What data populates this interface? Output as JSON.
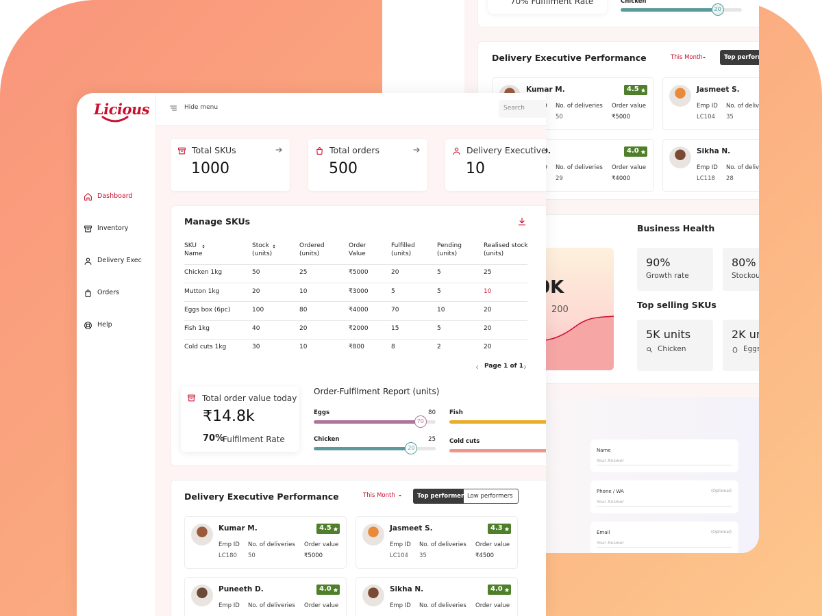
{
  "brand": "Licious",
  "topbar": {
    "hide_menu": "Hide menu",
    "search": "Search"
  },
  "sidebar": {
    "items": [
      "Dashboard",
      "Inventory",
      "Delivery Exec",
      "Orders",
      "Help"
    ],
    "active": 0
  },
  "stats": [
    {
      "label": "Total SKUs",
      "value": "1000"
    },
    {
      "label": "Total orders",
      "value": "500"
    },
    {
      "label": "Delivery Executives",
      "value": "10"
    }
  ],
  "skus": {
    "title": "Manage SKUs",
    "columns": [
      "SKU Name",
      "Stock (units)",
      "Ordered (units)",
      "Order Value",
      "Fulfilled (units)",
      "Pending (units)",
      "Realised stock (units)"
    ],
    "rows": [
      [
        "Chicken 1kg",
        "50",
        "25",
        "₹5000",
        "20",
        "5",
        "25"
      ],
      [
        "Mutton 1kg",
        "20",
        "10",
        "₹3000",
        "5",
        "5",
        "10"
      ],
      [
        "Eggs box (6pc)",
        "100",
        "80",
        "₹4000",
        "70",
        "10",
        "20"
      ],
      [
        "Fish 1kg",
        "40",
        "20",
        "₹2000",
        "15",
        "5",
        "20"
      ],
      [
        "Cold cuts 1kg",
        "30",
        "10",
        "₹800",
        "8",
        "2",
        "20"
      ]
    ],
    "highlight": [
      {
        "row": 1,
        "col": 6
      }
    ],
    "highlight_color": "#d0213b",
    "pagination": "Page 1 of 1"
  },
  "order_value": {
    "label": "Total order value today",
    "value": "₹14.8k",
    "rate": "70%",
    "rate_label": "Fulfilment Rate"
  },
  "fulfilment": {
    "title": "Order-Fulfilment Report (units)",
    "items": [
      {
        "name": "Eggs",
        "fulfilled": 70,
        "total": 80,
        "color": "#b0749c"
      },
      {
        "name": "Chicken",
        "fulfilled": 20,
        "total": 25,
        "color": "#5a9a9c"
      },
      {
        "name": "Fish",
        "color": "#e8ad2a"
      },
      {
        "name": "Cold cuts",
        "color": "#f0958e"
      }
    ]
  },
  "performance": {
    "title": "Delivery Executive Performance",
    "filter": "This Month",
    "tabs": [
      "Top performers",
      "Low performers"
    ],
    "labels": {
      "emp_id": "Emp ID",
      "deliveries": "No. of deliveries",
      "order_value": "Order value"
    },
    "cards": [
      {
        "name": "Kumar M.",
        "rating": "4.5",
        "emp_id": "LC180",
        "deliveries": "50",
        "order_value": "₹5000"
      },
      {
        "name": "Jasmeet S.",
        "rating": "4.3",
        "emp_id": "LC104",
        "deliveries": "35",
        "order_value": "₹4500"
      },
      {
        "name": "Puneeth D.",
        "rating": "4.0"
      },
      {
        "name": "Sikha N.",
        "rating": "4.0"
      }
    ]
  },
  "back": {
    "fulfilment_rate": "70% Fulfilment Rate",
    "performance": {
      "tab": "Top perform",
      "cards": [
        {
          "name": "Kumar M.",
          "rating": "4.5",
          "deliveries": "50",
          "order_value": "₹5000"
        },
        {
          "name": "Jasmeet S.",
          "emp_id": "LC104",
          "deliveries": "35"
        },
        {
          "name": "eth D.",
          "rating": "4.0",
          "deliveries": "29",
          "order_value": "₹4000"
        },
        {
          "name": "Sikha N.",
          "emp_id": "LC118",
          "deliveries": "28"
        }
      ]
    },
    "revenue": {
      "value": "0K",
      "change": "200"
    },
    "health": {
      "title": "Business Health",
      "tiles": [
        {
          "value": "90%",
          "label": "Growth rate"
        },
        {
          "value": "80%",
          "label": "Stockou"
        }
      ],
      "top_title": "Top selling SKUs",
      "top": [
        {
          "value": "5K units",
          "label": "Chicken"
        },
        {
          "value": "2K ur",
          "label": "Eggs"
        }
      ]
    },
    "form": {
      "fields": [
        {
          "label": "Name",
          "placeholder": "Your Answer"
        },
        {
          "label": "Phone / WA",
          "optional": "(Optional)",
          "placeholder": "Your Answer"
        },
        {
          "label": "Email",
          "optional": "(Optional)",
          "placeholder": "Your Answer"
        }
      ]
    }
  }
}
